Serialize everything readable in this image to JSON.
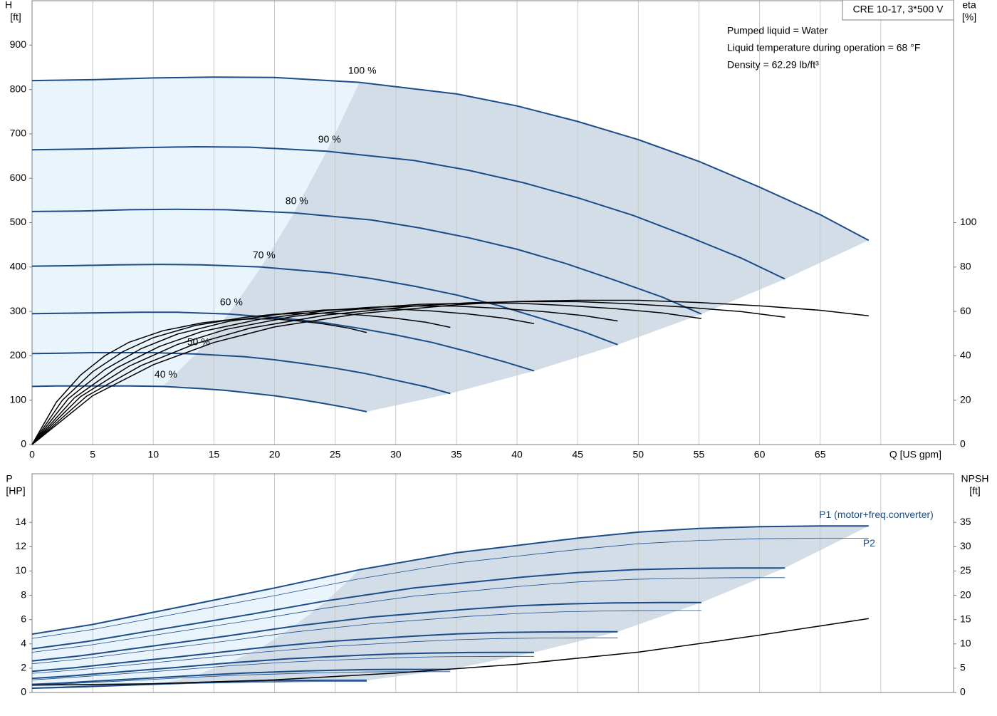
{
  "chart_data": [
    {
      "type": "line",
      "annotation_box": "CRE 10-17, 3*500 V",
      "notes": [
        "Pumped liquid = Water",
        "Liquid temperature during operation = 68 °F",
        "Density = 62.29 lb/ft³"
      ],
      "ylabel": [
        "H",
        "[ft]"
      ],
      "y2label": [
        "eta",
        "[%]"
      ],
      "xlim": [
        0,
        76
      ],
      "xticks": [
        0,
        5,
        10,
        15,
        20,
        25,
        30,
        35,
        40,
        45,
        50,
        55,
        60,
        65,
        {
          "value": 70,
          "label": "Q [US gpm]"
        }
      ],
      "ylim": [
        0,
        1000
      ],
      "yticks": [
        0,
        100,
        200,
        300,
        400,
        500,
        600,
        700,
        800,
        900
      ],
      "y2lim": [
        0,
        200
      ],
      "y2ticks": [
        0,
        20,
        40,
        60,
        80,
        100
      ],
      "grid": "x",
      "area_colors": [
        "#eaf4fc",
        "#d2dde8"
      ],
      "series": [
        {
          "name": "100 %",
          "color": "#1b4c88",
          "line_width": 2,
          "x": [
            0,
            5,
            10,
            15,
            20,
            27,
            35,
            40,
            45,
            50,
            55,
            60,
            65,
            69
          ],
          "values": [
            820,
            822,
            826,
            828,
            827,
            816,
            790,
            763,
            728,
            687,
            638,
            580,
            518,
            460
          ]
        },
        {
          "name": "90 %",
          "color": "#1b4c88",
          "line_width": 2,
          "x": [
            0,
            4.5,
            9,
            13.5,
            18,
            24.3,
            31.5,
            36,
            40.5,
            45,
            49.5,
            54,
            58.5,
            62.1
          ],
          "values": [
            664,
            666,
            669,
            671,
            670,
            661,
            640,
            618,
            590,
            556,
            517,
            470,
            420,
            373
          ]
        },
        {
          "name": "80 %",
          "color": "#1b4c88",
          "line_width": 2,
          "x": [
            0,
            4,
            8,
            12,
            16,
            21.6,
            28,
            32,
            36,
            40,
            44,
            48,
            52,
            55.2
          ],
          "values": [
            525,
            526,
            529,
            530,
            529,
            522,
            506,
            488,
            466,
            440,
            408,
            371,
            332,
            294
          ]
        },
        {
          "name": "70 %",
          "color": "#1b4c88",
          "line_width": 2,
          "x": [
            0,
            3.5,
            7,
            10.5,
            14,
            18.9,
            24.5,
            28,
            31.5,
            35,
            38.5,
            42,
            45.5,
            48.3
          ],
          "values": [
            402,
            403,
            405,
            406,
            405,
            400,
            387,
            374,
            357,
            337,
            313,
            284,
            254,
            225
          ]
        },
        {
          "name": "60 %",
          "color": "#1b4c88",
          "line_width": 2,
          "x": [
            0,
            3,
            6,
            9,
            12,
            16.2,
            21,
            24,
            27,
            30,
            33,
            36,
            39,
            41.4
          ],
          "values": [
            295,
            296,
            297,
            298,
            298,
            294,
            284,
            275,
            262,
            247,
            230,
            209,
            186,
            166
          ]
        },
        {
          "name": "50 %",
          "color": "#1b4c88",
          "line_width": 2,
          "x": [
            0,
            2.5,
            5,
            7.5,
            10,
            13.5,
            17.5,
            20,
            22.5,
            25,
            27.5,
            30,
            32.5,
            34.5
          ],
          "values": [
            205,
            206,
            207,
            207,
            207,
            204,
            198,
            191,
            182,
            172,
            160,
            145,
            130,
            115
          ]
        },
        {
          "name": "40 %",
          "color": "#1b4c88",
          "line_width": 2,
          "x": [
            0,
            2,
            4,
            6,
            8,
            10.8,
            14,
            16,
            18,
            20,
            22,
            24,
            26,
            27.6
          ],
          "values": [
            131,
            132,
            132,
            132,
            132,
            131,
            126,
            122,
            116,
            110,
            102,
            93,
            83,
            74
          ]
        },
        {
          "color": "#000000",
          "axis": "y2",
          "line_width": 1.5,
          "x": [
            0,
            5,
            10,
            15,
            20,
            27,
            35,
            40,
            45,
            50,
            55,
            60,
            65,
            69
          ],
          "values": [
            0,
            22,
            36,
            46,
            53,
            59,
            63,
            64.5,
            65,
            65,
            64,
            62.5,
            60.5,
            58
          ]
        },
        {
          "color": "#000000",
          "axis": "y2",
          "line_width": 1.5,
          "x": [
            0,
            4.5,
            9,
            13.5,
            18,
            24.3,
            31.5,
            36,
            40.5,
            45,
            49.5,
            54,
            58.5,
            62.1
          ],
          "values": [
            0,
            21.8,
            35.6,
            45.5,
            52.5,
            58.4,
            62.4,
            63.9,
            64.4,
            64.4,
            63.4,
            61.9,
            59.9,
            57.4
          ]
        },
        {
          "color": "#000000",
          "axis": "y2",
          "line_width": 1.5,
          "x": [
            0,
            4,
            8,
            12,
            16,
            21.6,
            28,
            32,
            36,
            40,
            44,
            48,
            52,
            55.2
          ],
          "values": [
            0,
            21.6,
            35.3,
            45.1,
            51.9,
            57.8,
            61.7,
            63.2,
            63.7,
            63.7,
            62.7,
            61.3,
            59.3,
            56.8
          ]
        },
        {
          "color": "#000000",
          "axis": "y2",
          "line_width": 1.5,
          "x": [
            0,
            3.5,
            7,
            10.5,
            14,
            18.9,
            24.5,
            28,
            31.5,
            35,
            38.5,
            42,
            45.5,
            48.3
          ],
          "values": [
            0,
            21.1,
            34.6,
            44.2,
            50.9,
            56.6,
            60.5,
            61.9,
            62.4,
            62.4,
            61.4,
            60,
            58.1,
            55.7
          ]
        },
        {
          "color": "#000000",
          "axis": "y2",
          "line_width": 1.5,
          "x": [
            0,
            3,
            6,
            9,
            12,
            16.2,
            21,
            24,
            27,
            30,
            33,
            36,
            39,
            41.4
          ],
          "values": [
            0,
            20.7,
            33.8,
            43.2,
            49.8,
            55.5,
            59.2,
            60.6,
            61.1,
            61.1,
            60.2,
            58.8,
            56.9,
            54.5
          ]
        },
        {
          "color": "#000000",
          "axis": "y2",
          "line_width": 1.5,
          "x": [
            0,
            2.5,
            5,
            7.5,
            10,
            13.5,
            17.5,
            20,
            22.5,
            25,
            27.5,
            30,
            32.5,
            34.5
          ],
          "values": [
            0,
            20,
            32.8,
            41.9,
            48.2,
            53.7,
            57.3,
            58.7,
            59.2,
            59.2,
            58.2,
            56.9,
            55.1,
            52.8
          ]
        },
        {
          "color": "#000000",
          "axis": "y2",
          "line_width": 1.5,
          "x": [
            0,
            2,
            4,
            6,
            8,
            10.8,
            14,
            16,
            18,
            20,
            22,
            24,
            26,
            27.6
          ],
          "values": [
            0,
            19.1,
            31.3,
            40,
            46.1,
            51.3,
            54.8,
            56.1,
            56.6,
            56.6,
            55.7,
            54.4,
            52.6,
            50.5
          ]
        }
      ]
    },
    {
      "type": "line",
      "ylabel": [
        "P",
        "[HP]"
      ],
      "y2label": [
        "NPSH",
        "[ft]"
      ],
      "xlim": [
        0,
        76
      ],
      "ylim": [
        0,
        18
      ],
      "yticks": [
        0,
        2,
        4,
        6,
        8,
        10,
        12,
        14
      ],
      "y2lim": [
        0,
        45
      ],
      "y2ticks": [
        0,
        5,
        10,
        15,
        20,
        25,
        30,
        35
      ],
      "grid": "x",
      "area_colors": [
        "#eaf4fc",
        "#d2dde8"
      ],
      "series": [
        {
          "name": "P1 (motor+freq.converter)",
          "color": "#1b4c88",
          "line_width": 2,
          "x": [
            0,
            5,
            10,
            15,
            20,
            27,
            35,
            40,
            45,
            50,
            55,
            60,
            65,
            69
          ],
          "values": [
            4.8,
            5.6,
            6.6,
            7.6,
            8.6,
            10.1,
            11.5,
            12.1,
            12.7,
            13.2,
            13.5,
            13.65,
            13.7,
            13.7
          ]
        },
        {
          "color": "#1b4c88",
          "line_width": 2,
          "x": [
            0,
            4.5,
            9,
            13.5,
            18,
            24.3,
            31.5,
            36,
            40.5,
            45,
            49.5,
            54,
            58.5,
            62.1
          ],
          "values": [
            3.59,
            4.19,
            4.94,
            5.68,
            6.43,
            7.55,
            8.6,
            9.05,
            9.5,
            9.87,
            10.1,
            10.21,
            10.25,
            10.25
          ]
        },
        {
          "color": "#1b4c88",
          "line_width": 2,
          "x": [
            0,
            4,
            8,
            12,
            16,
            21.6,
            28,
            32,
            36,
            40,
            44,
            48,
            52,
            55.2
          ],
          "values": [
            2.59,
            3.02,
            3.56,
            4.1,
            4.64,
            5.45,
            6.21,
            6.53,
            6.86,
            7.13,
            7.29,
            7.37,
            7.4,
            7.4
          ]
        },
        {
          "color": "#1b4c88",
          "line_width": 2,
          "x": [
            0,
            3.5,
            7,
            10.5,
            14,
            18.9,
            24.5,
            28,
            31.5,
            35,
            38.5,
            42,
            45.5,
            48.3
          ],
          "values": [
            1.75,
            2.04,
            2.41,
            2.77,
            3.14,
            3.69,
            4.2,
            4.42,
            4.64,
            4.82,
            4.93,
            4.98,
            5,
            5
          ]
        },
        {
          "color": "#1b4c88",
          "line_width": 2,
          "x": [
            0,
            3,
            6,
            9,
            12,
            16.2,
            21,
            24,
            27,
            30,
            33,
            36,
            39,
            41.4
          ],
          "values": [
            1.16,
            1.35,
            1.59,
            1.83,
            2.07,
            2.43,
            2.77,
            2.92,
            3.06,
            3.18,
            3.25,
            3.29,
            3.3,
            3.3
          ]
        },
        {
          "color": "#1b4c88",
          "line_width": 2,
          "x": [
            0,
            2.5,
            5,
            7.5,
            10,
            13.5,
            17.5,
            20,
            22.5,
            25,
            27.5,
            30,
            32.5,
            34.5
          ],
          "values": [
            0.67,
            0.78,
            0.92,
            1.06,
            1.2,
            1.4,
            1.6,
            1.68,
            1.77,
            1.83,
            1.88,
            1.9,
            1.9,
            1.9
          ]
        },
        {
          "color": "#1b4c88",
          "line_width": 2,
          "x": [
            0,
            2,
            4,
            6,
            8,
            10.8,
            14,
            16,
            18,
            20,
            22,
            24,
            26,
            27.6
          ],
          "values": [
            0.35,
            0.41,
            0.48,
            0.55,
            0.63,
            0.74,
            0.84,
            0.88,
            0.93,
            0.96,
            0.99,
            1,
            1,
            1
          ]
        },
        {
          "name": "P2",
          "color": "#1b4c88",
          "line_width": 0.8,
          "x": [
            0,
            5,
            10,
            15,
            20,
            27,
            35,
            40,
            45,
            50,
            55,
            60,
            65,
            69
          ],
          "values": [
            4.45,
            5.19,
            6.12,
            7.05,
            7.97,
            9.36,
            10.66,
            11.22,
            11.77,
            12.24,
            12.51,
            12.65,
            12.7,
            12.7
          ]
        },
        {
          "color": "#1b4c88",
          "line_width": 0.8,
          "x": [
            0,
            4.5,
            9,
            13.5,
            18,
            24.3,
            31.5,
            36,
            40.5,
            45,
            49.5,
            54,
            58.5,
            62.1
          ],
          "values": [
            3.31,
            3.86,
            4.55,
            5.24,
            5.93,
            6.96,
            7.93,
            8.34,
            8.76,
            9.1,
            9.31,
            9.41,
            9.45,
            9.45
          ]
        },
        {
          "color": "#1b4c88",
          "line_width": 0.8,
          "x": [
            0,
            4,
            8,
            12,
            16,
            21.6,
            28,
            32,
            36,
            40,
            44,
            48,
            52,
            55.2
          ],
          "values": [
            2.36,
            2.75,
            3.25,
            3.74,
            4.23,
            4.97,
            5.66,
            5.96,
            6.26,
            6.5,
            6.65,
            6.72,
            6.75,
            6.75
          ]
        },
        {
          "color": "#1b4c88",
          "line_width": 0.8,
          "x": [
            0,
            3.5,
            7,
            10.5,
            14,
            18.9,
            24.5,
            28,
            31.5,
            35,
            38.5,
            42,
            45.5,
            48.3
          ],
          "values": [
            1.58,
            1.84,
            2.17,
            2.49,
            2.83,
            3.32,
            3.78,
            3.98,
            4.18,
            4.34,
            4.44,
            4.48,
            4.5,
            4.5
          ]
        },
        {
          "color": "#1b4c88",
          "line_width": 0.8,
          "x": [
            0,
            3,
            6,
            9,
            12,
            16.2,
            21,
            24,
            27,
            30,
            33,
            36,
            39,
            41.4
          ],
          "values": [
            1.04,
            1.22,
            1.43,
            1.65,
            1.86,
            2.19,
            2.49,
            2.63,
            2.75,
            2.86,
            2.93,
            2.96,
            2.97,
            2.97
          ]
        },
        {
          "color": "#1b4c88",
          "line_width": 0.8,
          "x": [
            0,
            2.5,
            5,
            7.5,
            10,
            13.5,
            17.5,
            20,
            22.5,
            25,
            27.5,
            30,
            32.5,
            34.5
          ],
          "values": [
            0.6,
            0.7,
            0.83,
            0.95,
            1.08,
            1.26,
            1.44,
            1.51,
            1.59,
            1.65,
            1.69,
            1.71,
            1.71,
            1.71
          ]
        },
        {
          "color": "#1b4c88",
          "line_width": 0.8,
          "x": [
            0,
            2,
            4,
            6,
            8,
            10.8,
            14,
            16,
            18,
            20,
            22,
            24,
            26,
            27.6
          ],
          "values": [
            0.32,
            0.37,
            0.43,
            0.5,
            0.57,
            0.67,
            0.76,
            0.79,
            0.84,
            0.86,
            0.89,
            0.9,
            0.9,
            0.9
          ]
        },
        {
          "color": "#000000",
          "axis": "y2",
          "line_width": 1.5,
          "x": [
            0,
            10,
            20,
            30,
            40,
            50,
            60,
            69
          ],
          "values": [
            1.5,
            1.8,
            2.6,
            4,
            5.8,
            8.3,
            11.8,
            15.2
          ]
        }
      ]
    }
  ]
}
